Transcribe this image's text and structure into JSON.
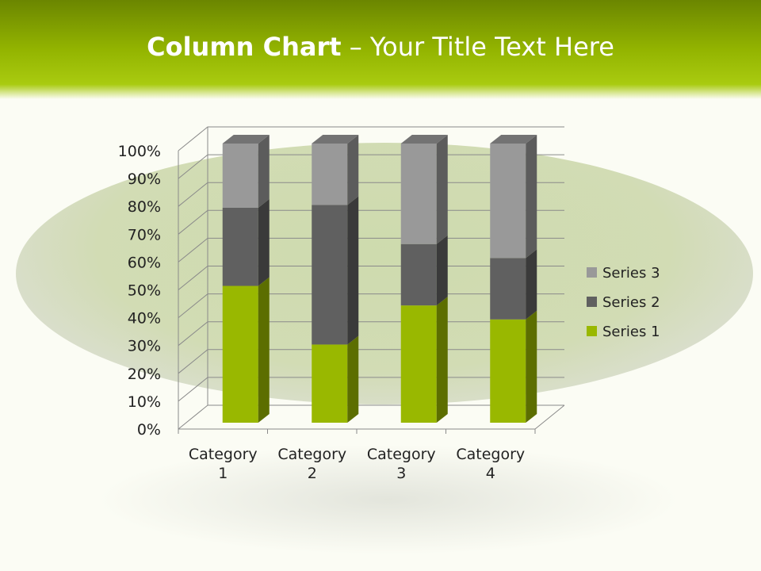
{
  "slide": {
    "title_bold": "Column Chart",
    "title_rest": " – Your Title Text Here"
  },
  "chart_data": {
    "type": "bar",
    "stacked": "percent",
    "three_d": true,
    "categories": [
      "Category 1",
      "Category 2",
      "Category 3",
      "Category 4"
    ],
    "series": [
      {
        "name": "Series 1",
        "values": [
          49,
          28,
          42,
          37
        ],
        "color": "#99b800"
      },
      {
        "name": "Series 2",
        "values": [
          28,
          50,
          22,
          22
        ],
        "color": "#606060"
      },
      {
        "name": "Series 3",
        "values": [
          23,
          22,
          36,
          41
        ],
        "color": "#999999"
      }
    ],
    "ylim": [
      0,
      100
    ],
    "yticks": [
      "0%",
      "10%",
      "20%",
      "30%",
      "40%",
      "50%",
      "60%",
      "70%",
      "80%",
      "90%",
      "100%"
    ],
    "grid": true,
    "legend": "right"
  }
}
